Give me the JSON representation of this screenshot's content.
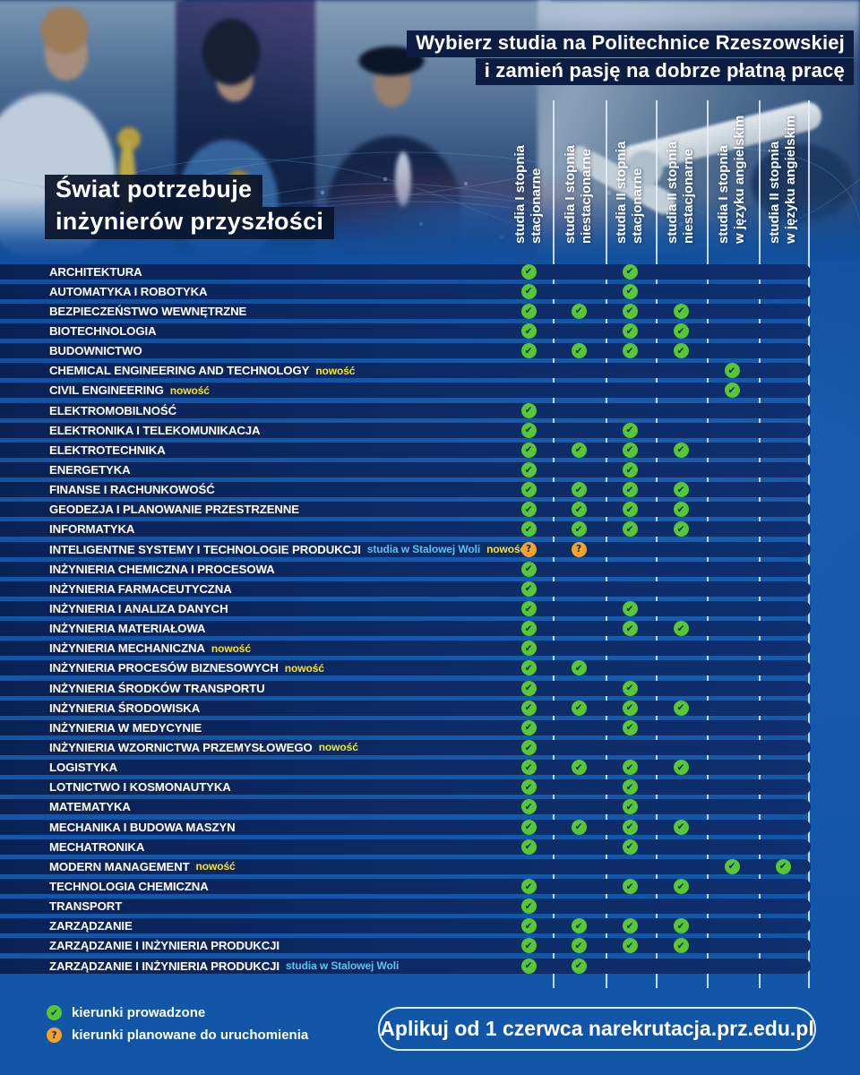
{
  "header": {
    "line1_regular": "Wybierz studia na ",
    "line1_bold": "Politechnice Rzeszowskiej",
    "line2": "i zamień pasję na dobrze płatną pracę"
  },
  "hero_title": {
    "line1": "Świat potrzebuje",
    "line2": "inżynierów przyszłości"
  },
  "columns": [
    {
      "line1": "studia I stopnia",
      "line2": "stacjonarne"
    },
    {
      "line1": "studia I stopnia",
      "line2": "niestacjonarne"
    },
    {
      "line1": "studia II stopnia",
      "line2": "stacjonarne"
    },
    {
      "line1": "studia II stopnia",
      "line2": "niestacjonarne"
    },
    {
      "line1": "studia I stopnia",
      "line2": "w języku angielskim"
    },
    {
      "line1": "studia II stopnia",
      "line2": "w języku angielskim"
    }
  ],
  "colors": {
    "check_green": "#58c735",
    "planned_orange": "#f4a32a",
    "badge_new_yellow": "#f3e52c",
    "badge_location_blue": "#5ac3f5",
    "row_navy": "#0d2a63"
  },
  "programs": [
    {
      "name": "ARCHITEKTURA",
      "tags": [],
      "cells": [
        "c",
        "",
        "c",
        "",
        "",
        ""
      ]
    },
    {
      "name": "AUTOMATYKA I ROBOTYKA",
      "tags": [],
      "cells": [
        "c",
        "",
        "c",
        "",
        "",
        ""
      ]
    },
    {
      "name": "BEZPIECZEŃSTWO WEWNĘTRZNE",
      "tags": [],
      "cells": [
        "c",
        "c",
        "c",
        "c",
        "",
        ""
      ]
    },
    {
      "name": "BIOTECHNOLOGIA",
      "tags": [],
      "cells": [
        "c",
        "",
        "c",
        "c",
        "",
        ""
      ]
    },
    {
      "name": "BUDOWNICTWO",
      "tags": [],
      "cells": [
        "c",
        "c",
        "c",
        "c",
        "",
        ""
      ]
    },
    {
      "name": "CHEMICAL ENGINEERING AND TECHNOLOGY",
      "tags": [
        {
          "type": "new",
          "text": "nowość"
        }
      ],
      "cells": [
        "",
        "",
        "",
        "",
        "c",
        ""
      ]
    },
    {
      "name": "CIVIL ENGINEERING",
      "tags": [
        {
          "type": "new",
          "text": "nowość"
        }
      ],
      "cells": [
        "",
        "",
        "",
        "",
        "c",
        ""
      ]
    },
    {
      "name": "ELEKTROMOBILNOŚĆ",
      "tags": [],
      "cells": [
        "c",
        "",
        "",
        "",
        "",
        ""
      ]
    },
    {
      "name": "ELEKTRONIKA I TELEKOMUNIKACJA",
      "tags": [],
      "cells": [
        "c",
        "",
        "c",
        "",
        "",
        ""
      ]
    },
    {
      "name": "ELEKTROTECHNIKA",
      "tags": [],
      "cells": [
        "c",
        "c",
        "c",
        "c",
        "",
        ""
      ]
    },
    {
      "name": "ENERGETYKA",
      "tags": [],
      "cells": [
        "c",
        "",
        "c",
        "",
        "",
        ""
      ]
    },
    {
      "name": "FINANSE I RACHUNKOWOŚĆ",
      "tags": [],
      "cells": [
        "c",
        "c",
        "c",
        "c",
        "",
        ""
      ]
    },
    {
      "name": "GEODEZJA I PLANOWANIE PRZESTRZENNE",
      "tags": [],
      "cells": [
        "c",
        "c",
        "c",
        "c",
        "",
        ""
      ]
    },
    {
      "name": "INFORMATYKA",
      "tags": [],
      "cells": [
        "c",
        "c",
        "c",
        "c",
        "",
        ""
      ]
    },
    {
      "name": "INTELIGENTNE SYSTEMY I TECHNOLOGIE PRODUKCJI",
      "tags": [
        {
          "type": "location",
          "text": "studia w Stalowej Woli"
        },
        {
          "type": "new",
          "text": "nowość"
        }
      ],
      "cells": [
        "q",
        "q",
        "",
        "",
        "",
        ""
      ]
    },
    {
      "name": "INŻYNIERIA CHEMICZNA I PROCESOWA",
      "tags": [],
      "cells": [
        "c",
        "",
        "",
        "",
        "",
        ""
      ]
    },
    {
      "name": "INŻYNIERIA FARMACEUTYCZNA",
      "tags": [],
      "cells": [
        "c",
        "",
        "",
        "",
        "",
        ""
      ]
    },
    {
      "name": "INŻYNIERIA I ANALIZA DANYCH",
      "tags": [],
      "cells": [
        "c",
        "",
        "c",
        "",
        "",
        ""
      ]
    },
    {
      "name": "INŻYNIERIA MATERIAŁOWA",
      "tags": [],
      "cells": [
        "c",
        "",
        "c",
        "c",
        "",
        ""
      ]
    },
    {
      "name": "INŻYNIERIA MECHANICZNA",
      "tags": [
        {
          "type": "new",
          "text": "nowość"
        }
      ],
      "cells": [
        "c",
        "",
        "",
        "",
        "",
        ""
      ]
    },
    {
      "name": "INŻYNIERIA PROCESÓW BIZNESOWYCH",
      "tags": [
        {
          "type": "new",
          "text": "nowość"
        }
      ],
      "cells": [
        "c",
        "c",
        "",
        "",
        "",
        ""
      ]
    },
    {
      "name": "INŻYNIERIA ŚRODKÓW TRANSPORTU",
      "tags": [],
      "cells": [
        "c",
        "",
        "c",
        "",
        "",
        ""
      ]
    },
    {
      "name": "INŻYNIERIA ŚRODOWISKA",
      "tags": [],
      "cells": [
        "c",
        "c",
        "c",
        "c",
        "",
        ""
      ]
    },
    {
      "name": "INŻYNIERIA W MEDYCYNIE",
      "tags": [],
      "cells": [
        "c",
        "",
        "c",
        "",
        "",
        ""
      ]
    },
    {
      "name": "INŻYNIERIA WZORNICTWA PRZEMYSŁOWEGO",
      "tags": [
        {
          "type": "new",
          "text": "nowość"
        }
      ],
      "cells": [
        "c",
        "",
        "",
        "",
        "",
        ""
      ]
    },
    {
      "name": "LOGISTYKA",
      "tags": [],
      "cells": [
        "c",
        "c",
        "c",
        "c",
        "",
        ""
      ]
    },
    {
      "name": "LOTNICTWO I KOSMONAUTYKA",
      "tags": [],
      "cells": [
        "c",
        "",
        "c",
        "",
        "",
        ""
      ]
    },
    {
      "name": "MATEMATYKA",
      "tags": [],
      "cells": [
        "c",
        "",
        "c",
        "",
        "",
        ""
      ]
    },
    {
      "name": "MECHANIKA I BUDOWA MASZYN",
      "tags": [],
      "cells": [
        "c",
        "c",
        "c",
        "c",
        "",
        ""
      ]
    },
    {
      "name": "MECHATRONIKA",
      "tags": [],
      "cells": [
        "c",
        "",
        "c",
        "",
        "",
        ""
      ]
    },
    {
      "name": "MODERN MANAGEMENT",
      "tags": [
        {
          "type": "new",
          "text": "nowość"
        }
      ],
      "cells": [
        "",
        "",
        "",
        "",
        "c",
        "c"
      ]
    },
    {
      "name": "TECHNOLOGIA CHEMICZNA",
      "tags": [],
      "cells": [
        "c",
        "",
        "c",
        "c",
        "",
        ""
      ]
    },
    {
      "name": "TRANSPORT",
      "tags": [],
      "cells": [
        "c",
        "",
        "",
        "",
        "",
        ""
      ]
    },
    {
      "name": "ZARZĄDZANIE",
      "tags": [],
      "cells": [
        "c",
        "c",
        "c",
        "c",
        "",
        ""
      ]
    },
    {
      "name": "ZARZĄDZANIE I INŻYNIERIA PRODUKCJI",
      "tags": [],
      "cells": [
        "c",
        "c",
        "c",
        "c",
        "",
        ""
      ]
    },
    {
      "name": "ZARZĄDZANIE I INŻYNIERIA PRODUKCJI",
      "tags": [
        {
          "type": "location",
          "text": "studia w Stalowej Woli"
        }
      ],
      "cells": [
        "c",
        "c",
        "",
        "",
        "",
        ""
      ]
    }
  ],
  "legend": [
    {
      "icon": "check",
      "label": "kierunki prowadzone"
    },
    {
      "icon": "question",
      "label": "kierunki planowane do uruchomienia"
    }
  ],
  "cta": {
    "regular": "Aplikuj od 1 czerwca na ",
    "bold": "rekrutacja.prz.edu.pl"
  }
}
